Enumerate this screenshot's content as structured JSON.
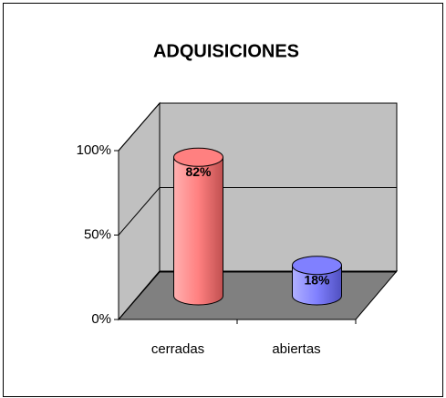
{
  "chart_data": {
    "type": "bar",
    "title": "ADQUISICIONES",
    "categories": [
      "cerradas",
      "abiertas"
    ],
    "values": [
      82,
      18
    ],
    "value_labels": [
      "82%",
      "18%"
    ],
    "colors": [
      "#ff8080",
      "#8080ff"
    ],
    "ylim": [
      0,
      100
    ],
    "yticks": [
      {
        "value": 0,
        "label": "0%"
      },
      {
        "value": 50,
        "label": "50%"
      },
      {
        "value": 100,
        "label": "100%"
      }
    ],
    "grid": true
  }
}
